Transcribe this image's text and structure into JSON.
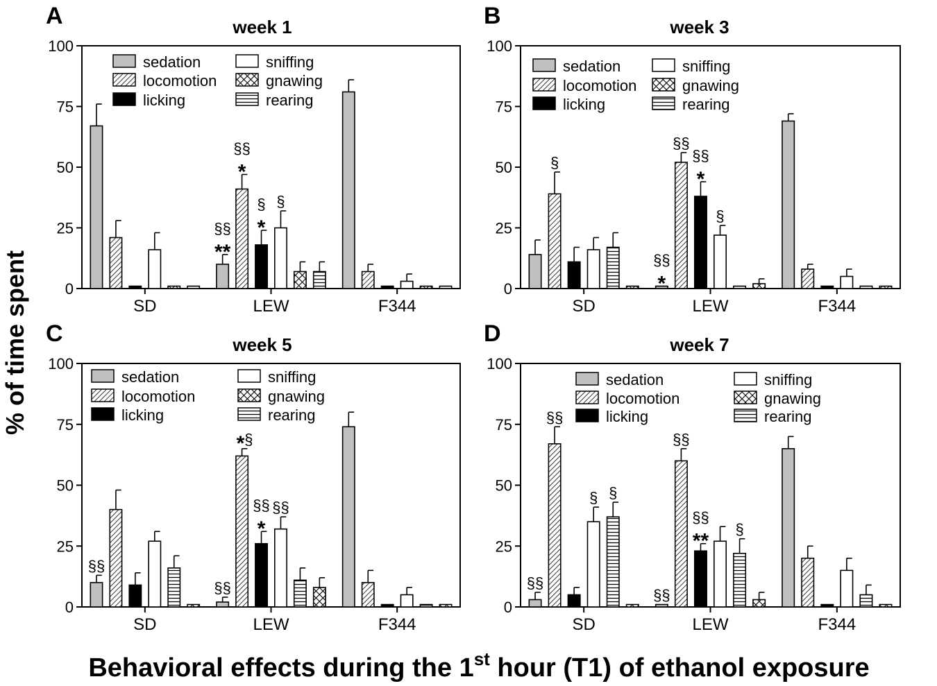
{
  "figure": {
    "ylabel": "% of time spent",
    "xlabel_main": "Behavioral effects during the 1",
    "xlabel_sup": "st",
    "xlabel_rest": " hour (T1) of ethanol exposure"
  },
  "chart_data": [
    {
      "type": "bar",
      "panel": "A",
      "title": "week 1",
      "categories": [
        "SD",
        "LEW",
        "F344"
      ],
      "ylim": [
        0,
        100
      ],
      "yticks": [
        0,
        25,
        50,
        75,
        100
      ],
      "legend": [
        "sedation",
        "locomotion",
        "licking",
        "sniffing",
        "gnawing",
        "rearing"
      ],
      "series": [
        {
          "name": "sedation",
          "values": [
            67,
            10,
            81
          ],
          "errors": [
            9,
            4,
            5
          ]
        },
        {
          "name": "locomotion",
          "values": [
            21,
            41,
            7
          ],
          "errors": [
            7,
            6,
            3
          ]
        },
        {
          "name": "licking",
          "values": [
            1,
            18,
            1
          ],
          "errors": [
            0,
            6,
            0
          ]
        },
        {
          "name": "sniffing",
          "values": [
            16,
            25,
            3
          ],
          "errors": [
            7,
            7,
            3
          ]
        },
        {
          "name": "gnawing",
          "values": [
            1,
            7,
            1
          ],
          "errors": [
            0,
            4,
            0
          ]
        },
        {
          "name": "rearing",
          "values": [
            1,
            7,
            1
          ],
          "errors": [
            0,
            4,
            0
          ]
        }
      ],
      "annotations": [
        {
          "cat": 1,
          "series": 0,
          "stars": "**",
          "sig": "§§"
        },
        {
          "cat": 1,
          "series": 1,
          "stars": "*",
          "sig": "§§"
        },
        {
          "cat": 1,
          "series": 2,
          "stars": "*",
          "sig": "§"
        },
        {
          "cat": 1,
          "series": 3,
          "stars": "",
          "sig": "§"
        }
      ]
    },
    {
      "type": "bar",
      "panel": "B",
      "title": "week 3",
      "categories": [
        "SD",
        "LEW",
        "F344"
      ],
      "ylim": [
        0,
        100
      ],
      "yticks": [
        0,
        25,
        50,
        75,
        100
      ],
      "legend": [
        "sedation",
        "locomotion",
        "licking",
        "sniffing",
        "gnawing",
        "rearing"
      ],
      "series": [
        {
          "name": "sedation",
          "values": [
            14,
            1,
            69
          ],
          "errors": [
            6,
            0,
            3
          ]
        },
        {
          "name": "locomotion",
          "values": [
            39,
            52,
            8
          ],
          "errors": [
            9,
            4,
            2
          ]
        },
        {
          "name": "licking",
          "values": [
            11,
            38,
            1
          ],
          "errors": [
            6,
            6,
            0
          ]
        },
        {
          "name": "sniffing",
          "values": [
            16,
            22,
            5
          ],
          "errors": [
            5,
            4,
            3
          ]
        },
        {
          "name": "rearing",
          "values": [
            17,
            1,
            1
          ],
          "errors": [
            6,
            0,
            0
          ]
        },
        {
          "name": "gnawing",
          "values": [
            1,
            2,
            1
          ],
          "errors": [
            0,
            2,
            0
          ]
        }
      ],
      "annotations": [
        {
          "cat": 0,
          "series": 1,
          "stars": "",
          "sig": "§"
        },
        {
          "cat": 1,
          "series": 0,
          "stars": "*",
          "sig": "§§"
        },
        {
          "cat": 1,
          "series": 1,
          "stars": "",
          "sig": "§§"
        },
        {
          "cat": 1,
          "series": 2,
          "stars": "*",
          "sig": "§§"
        },
        {
          "cat": 1,
          "series": 3,
          "stars": "",
          "sig": "§"
        }
      ]
    },
    {
      "type": "bar",
      "panel": "C",
      "title": "week 5",
      "categories": [
        "SD",
        "LEW",
        "F344"
      ],
      "ylim": [
        0,
        100
      ],
      "yticks": [
        0,
        25,
        50,
        75,
        100
      ],
      "legend": [
        "sedation",
        "locomotion",
        "licking",
        "sniffing",
        "gnawing",
        "rearing"
      ],
      "series": [
        {
          "name": "sedation",
          "values": [
            10,
            2,
            74
          ],
          "errors": [
            3,
            2,
            6
          ]
        },
        {
          "name": "locomotion",
          "values": [
            40,
            62,
            10
          ],
          "errors": [
            8,
            3,
            5
          ]
        },
        {
          "name": "licking",
          "values": [
            9,
            26,
            1
          ],
          "errors": [
            5,
            5,
            0
          ]
        },
        {
          "name": "sniffing",
          "values": [
            27,
            32,
            5
          ],
          "errors": [
            4,
            5,
            3
          ]
        },
        {
          "name": "rearing",
          "values": [
            16,
            11,
            1
          ],
          "errors": [
            5,
            5,
            0
          ]
        },
        {
          "name": "gnawing",
          "values": [
            1,
            8,
            1
          ],
          "errors": [
            0,
            4,
            0
          ]
        }
      ],
      "annotations": [
        {
          "cat": 0,
          "series": 0,
          "stars": "",
          "sig": "§§"
        },
        {
          "cat": 1,
          "series": 0,
          "stars": "",
          "sig": "§§"
        },
        {
          "cat": 1,
          "series": 1,
          "stars": "*",
          "sig": "§",
          "inline": true
        },
        {
          "cat": 1,
          "series": 2,
          "stars": "*",
          "sig": "§§"
        },
        {
          "cat": 1,
          "series": 3,
          "stars": "",
          "sig": "§§"
        }
      ]
    },
    {
      "type": "bar",
      "panel": "D",
      "title": "week 7",
      "categories": [
        "SD",
        "LEW",
        "F344"
      ],
      "ylim": [
        0,
        100
      ],
      "yticks": [
        0,
        25,
        50,
        75,
        100
      ],
      "legend": [
        "sedation",
        "locomotion",
        "licking",
        "sniffing",
        "gnawing",
        "rearing"
      ],
      "series": [
        {
          "name": "sedation",
          "values": [
            3,
            1,
            65
          ],
          "errors": [
            3,
            0,
            5
          ]
        },
        {
          "name": "locomotion",
          "values": [
            67,
            60,
            20
          ],
          "errors": [
            7,
            5,
            5
          ]
        },
        {
          "name": "licking",
          "values": [
            5,
            23,
            1
          ],
          "errors": [
            3,
            3,
            0
          ]
        },
        {
          "name": "sniffing",
          "values": [
            35,
            27,
            15
          ],
          "errors": [
            6,
            6,
            5
          ]
        },
        {
          "name": "rearing",
          "values": [
            37,
            22,
            5
          ],
          "errors": [
            6,
            6,
            4
          ]
        },
        {
          "name": "gnawing",
          "values": [
            1,
            3,
            1
          ],
          "errors": [
            0,
            3,
            0
          ]
        }
      ],
      "annotations": [
        {
          "cat": 0,
          "series": 0,
          "stars": "",
          "sig": "§§"
        },
        {
          "cat": 0,
          "series": 1,
          "stars": "",
          "sig": "§§"
        },
        {
          "cat": 0,
          "series": 3,
          "stars": "",
          "sig": "§"
        },
        {
          "cat": 0,
          "series": 4,
          "stars": "",
          "sig": "§"
        },
        {
          "cat": 1,
          "series": 0,
          "stars": "",
          "sig": "§§"
        },
        {
          "cat": 1,
          "series": 1,
          "stars": "",
          "sig": "§§"
        },
        {
          "cat": 1,
          "series": 2,
          "stars": "**",
          "sig": "§§"
        },
        {
          "cat": 1,
          "series": 4,
          "stars": "",
          "sig": "§"
        }
      ]
    }
  ],
  "style": {
    "sedation_fill": "#c0c0c0",
    "licking_fill": "#000000",
    "outline": "#000000"
  }
}
